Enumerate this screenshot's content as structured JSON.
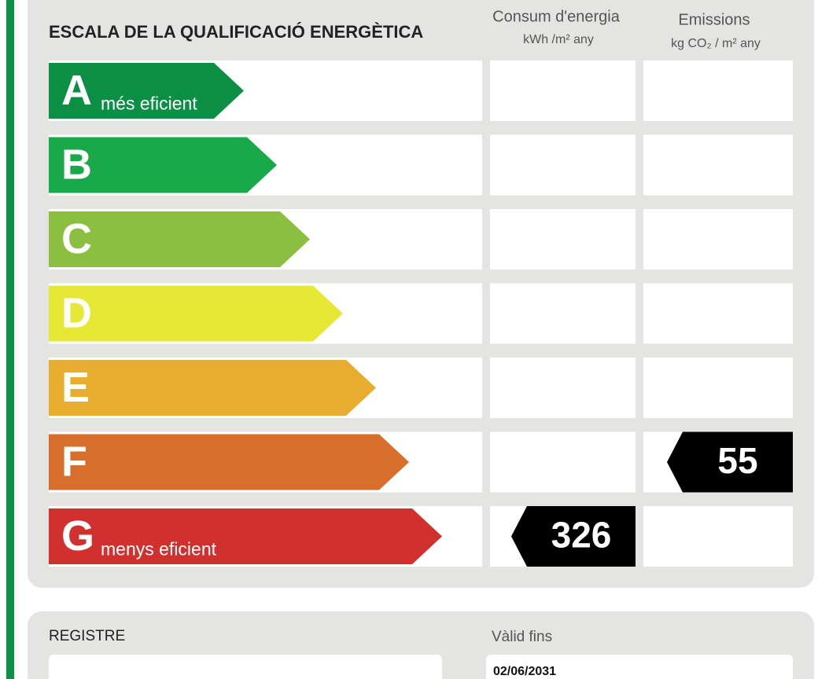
{
  "header": {
    "title": "ESCALA DE LA QUALIFICACIÓ ENERGÈTICA",
    "consumption": {
      "label": "Consum d'energia",
      "unit": "kWh /m² any"
    },
    "emissions": {
      "label": "Emissions",
      "unit": "kg CO₂ / m² any"
    }
  },
  "ratings": [
    {
      "letter": "A",
      "note": "més eficient",
      "color": "#0a8f45"
    },
    {
      "letter": "B",
      "color": "#19a84a"
    },
    {
      "letter": "C",
      "color": "#8cbf3f"
    },
    {
      "letter": "D",
      "color": "#e6e835"
    },
    {
      "letter": "E",
      "color": "#e8ac2e"
    },
    {
      "letter": "F",
      "color": "#d86e2b"
    },
    {
      "letter": "G",
      "note": "menys eficient",
      "color": "#d0312e"
    }
  ],
  "consumption": {
    "rating": "G",
    "value": 326
  },
  "emissions": {
    "rating": "F",
    "value": 55
  },
  "footer": {
    "register_label": "REGISTRE",
    "valid_label": "Vàlid fins",
    "valid_date": "02/06/2031"
  }
}
